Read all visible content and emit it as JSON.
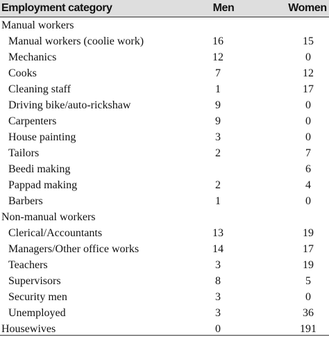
{
  "header": {
    "category": "Employment category",
    "men": "Men",
    "women": "Women"
  },
  "rows": [
    {
      "label": "Manual workers",
      "men": "",
      "women": "",
      "group": true
    },
    {
      "label": "Manual workers (coolie work)",
      "men": "16",
      "women": "15",
      "group": false
    },
    {
      "label": "Mechanics",
      "men": "12",
      "women": "0",
      "group": false
    },
    {
      "label": "Cooks",
      "men": "7",
      "women": "12",
      "group": false
    },
    {
      "label": "Cleaning staff",
      "men": "1",
      "women": "17",
      "group": false
    },
    {
      "label": "Driving bike/auto-rickshaw",
      "men": "9",
      "women": "0",
      "group": false
    },
    {
      "label": "Carpenters",
      "men": "9",
      "women": "0",
      "group": false
    },
    {
      "label": "House painting",
      "men": "3",
      "women": "0",
      "group": false
    },
    {
      "label": "Tailors",
      "men": "2",
      "women": "7",
      "group": false
    },
    {
      "label": "Beedi making",
      "men": "",
      "women": "6",
      "group": false
    },
    {
      "label": "Pappad making",
      "men": "2",
      "women": "4",
      "group": false
    },
    {
      "label": "Barbers",
      "men": "1",
      "women": "0",
      "group": false
    },
    {
      "label": "Non-manual workers",
      "men": "",
      "women": "",
      "group": true
    },
    {
      "label": "Clerical/Accountants",
      "men": "13",
      "women": "19",
      "group": false
    },
    {
      "label": "Managers/Other office works",
      "men": "14",
      "women": "17",
      "group": false
    },
    {
      "label": "Teachers",
      "men": "3",
      "women": "19",
      "group": false
    },
    {
      "label": "Supervisors",
      "men": "8",
      "women": "5",
      "group": false
    },
    {
      "label": "Security men",
      "men": "3",
      "women": "0",
      "group": false
    },
    {
      "label": "Unemployed",
      "men": "3",
      "women": "36",
      "group": false
    },
    {
      "label": "Housewives",
      "men": "0",
      "women": "191",
      "group": true
    }
  ]
}
